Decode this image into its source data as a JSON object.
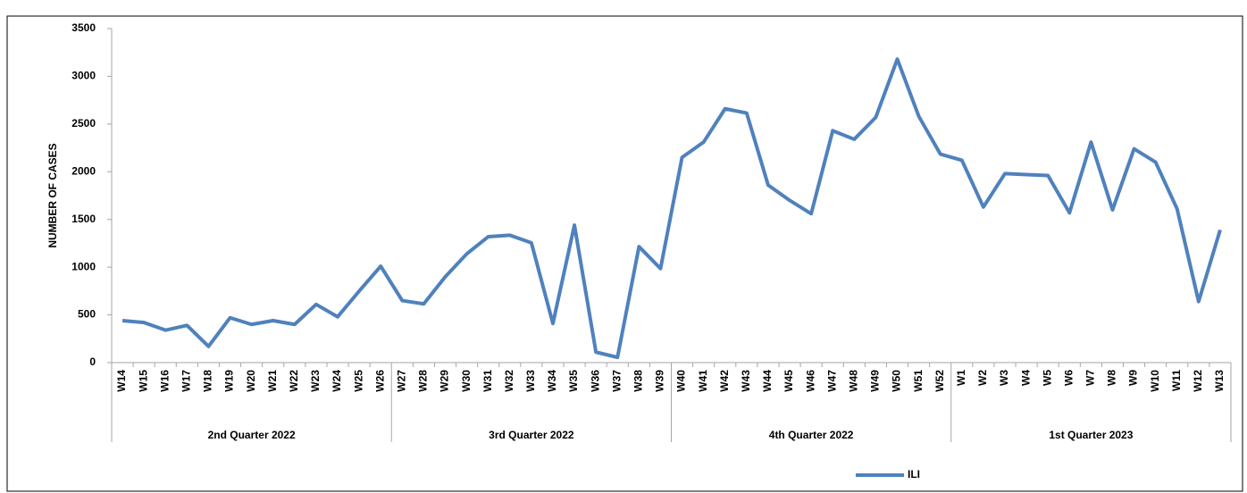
{
  "chart_data": {
    "type": "line",
    "y_label": "NUMBER OF CASES",
    "groups": [
      {
        "name": "2nd Quarter 2022",
        "categories": [
          "W14",
          "W15",
          "W16",
          "W17",
          "W18",
          "W19",
          "W20",
          "W21",
          "W22",
          "W23",
          "W24",
          "W25",
          "W26"
        ]
      },
      {
        "name": "3rd Quarter 2022",
        "categories": [
          "W27",
          "W28",
          "W29",
          "W30",
          "W31",
          "W32",
          "W33",
          "W34",
          "W35",
          "W36",
          "W37",
          "W38",
          "W39"
        ]
      },
      {
        "name": "4th Quarter 2022",
        "categories": [
          "W40",
          "W41",
          "W42",
          "W43",
          "W44",
          "W45",
          "W46",
          "W47",
          "W48",
          "W49",
          "W50",
          "W51",
          "W52"
        ]
      },
      {
        "name": "1st Quarter 2023",
        "categories": [
          "W1",
          "W2",
          "W3",
          "W4",
          "W5",
          "W6",
          "W7",
          "W8",
          "W9",
          "W10",
          "W11",
          "W12",
          "W13"
        ]
      }
    ],
    "series": [
      {
        "name": "ILI",
        "color": "#4f81bd",
        "values": [
          440,
          420,
          340,
          390,
          170,
          470,
          400,
          440,
          400,
          610,
          480,
          750,
          1010,
          650,
          615,
          900,
          1140,
          1320,
          1335,
          1255,
          410,
          1440,
          110,
          55,
          1215,
          985,
          2150,
          2310,
          2660,
          2615,
          1860,
          1700,
          1560,
          2430,
          2340,
          2570,
          3180,
          2580,
          2185,
          2120,
          1630,
          1980,
          1970,
          1960,
          1570,
          2310,
          1600,
          2240,
          2100,
          1610,
          640,
          1390
        ]
      }
    ],
    "ylim": [
      0,
      3500
    ],
    "yticks": [
      0,
      500,
      1000,
      1500,
      2000,
      2500,
      3000,
      3500
    ],
    "grid": false,
    "legend": "bottom"
  }
}
